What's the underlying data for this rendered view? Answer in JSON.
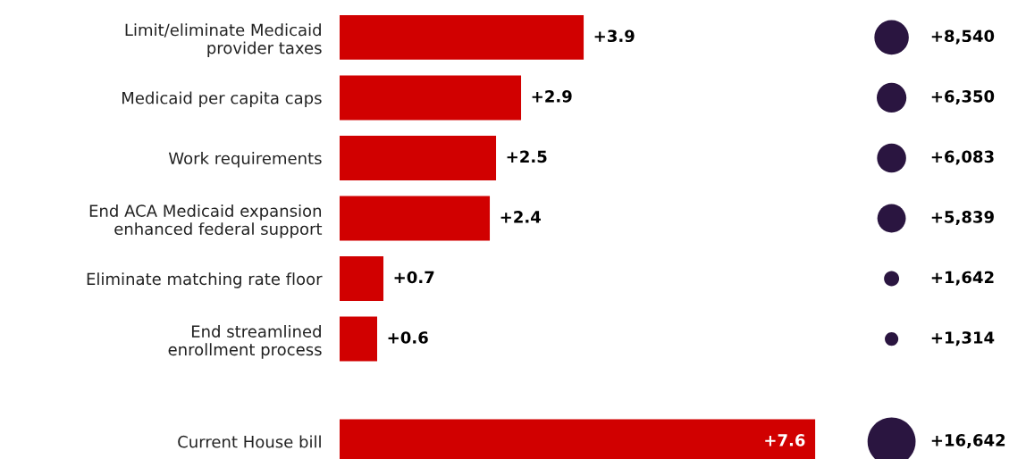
{
  "chart_data": [
    {
      "type": "bar",
      "orientation": "horizontal",
      "categories": [
        "Limit/eliminate Medicaid\nprovider taxes",
        "Medicaid per capita caps",
        "Work requirements",
        "End ACA Medicaid expansion\nenhanced federal support",
        "Eliminate matching rate floor",
        "End streamlined\nenrollment process",
        "Current House bill"
      ],
      "values": [
        3.9,
        2.9,
        2.5,
        2.4,
        0.7,
        0.6,
        7.6
      ],
      "value_labels": [
        "+3.9",
        "+2.9",
        "+2.5",
        "+2.4",
        "+0.7",
        "+0.6",
        "+7.6"
      ],
      "color": "#d10000",
      "tick_labels": "y",
      "grid": false,
      "legend": false
    },
    {
      "type": "other",
      "categories": [
        null,
        null,
        null,
        null,
        null,
        null,
        null
      ],
      "values": [
        8540,
        6350,
        6083,
        5839,
        1642,
        1314,
        16642
      ],
      "value_labels": [
        "+8,540",
        "+6,350",
        "+6,083",
        "+5,839",
        "+1,642",
        "+1,314",
        "+16,642"
      ],
      "color": "#2a1540",
      "legend": false
    }
  ]
}
